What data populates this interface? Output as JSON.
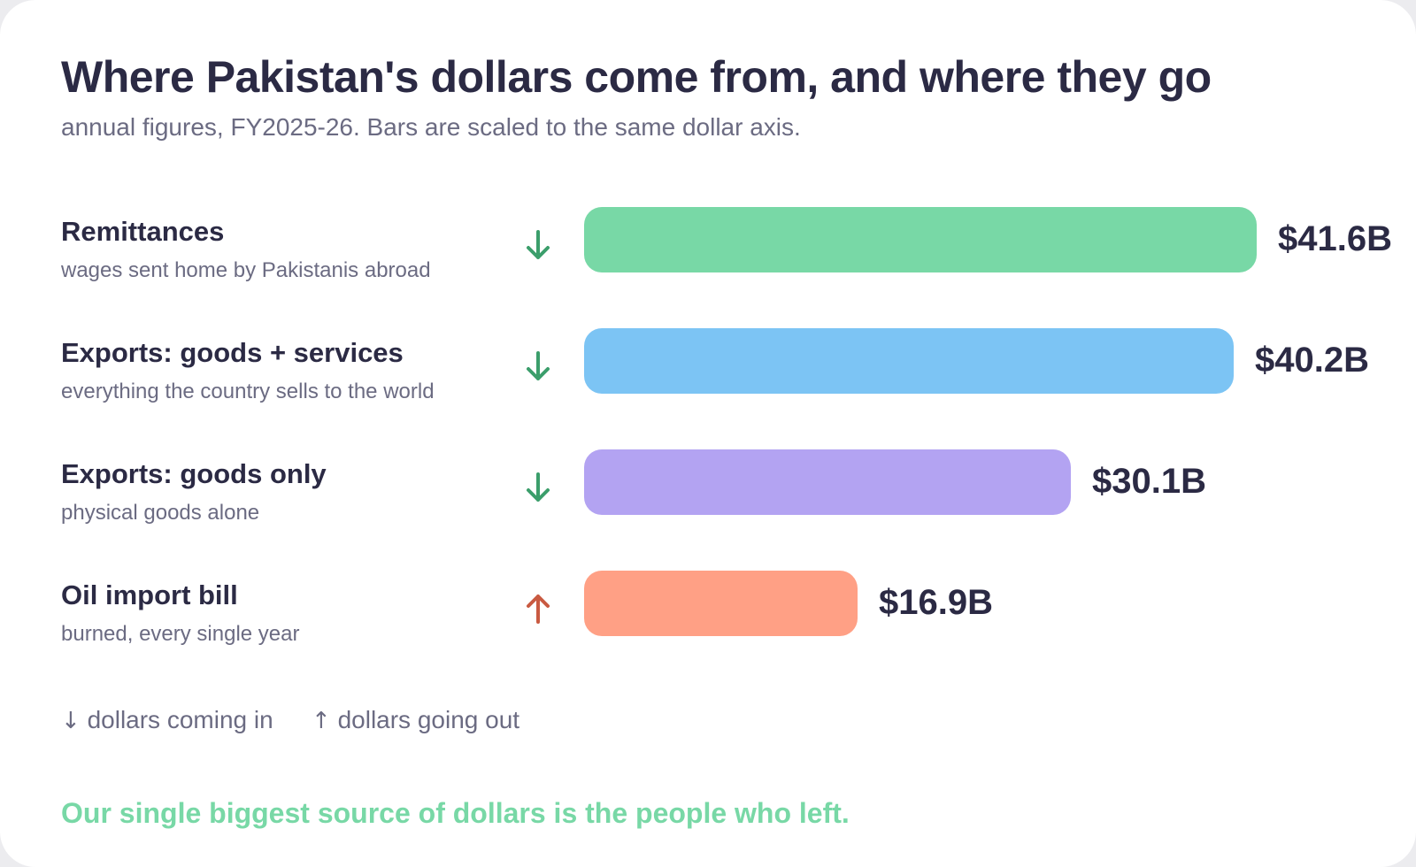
{
  "title": "Where Pakistan's dollars come from, and where they go",
  "subtitle": "annual figures, FY2025-26. Bars are scaled to the same dollar axis.",
  "legend": {
    "in": {
      "glyph": "↓",
      "label": "dollars coming in"
    },
    "out": {
      "glyph": "↑",
      "label": "dollars going out"
    }
  },
  "takeaway": "Our single biggest source of dollars is the people who left.",
  "colors": {
    "in_arrow": "#3b9e6b",
    "out_arrow": "#c95a41",
    "title": "#2b2a44",
    "muted": "#6b6b82",
    "takeaway": "#78d8a6"
  },
  "chart_data": {
    "type": "bar",
    "orientation": "horizontal",
    "unit": "USD billions",
    "xlim": [
      0,
      41.6
    ],
    "grid": false,
    "categories": [
      "Remittances",
      "Exports: goods + services",
      "Exports: goods only",
      "Oil import bill"
    ],
    "descriptions": [
      "wages sent home by Pakistanis abroad",
      "everything the country sells to the world",
      "physical goods alone",
      "burned, every single year"
    ],
    "values": [
      41.6,
      40.2,
      30.1,
      16.9
    ],
    "value_labels": [
      "$41.6B",
      "$40.2B",
      "$30.1B",
      "$16.9B"
    ],
    "directions": [
      "in",
      "in",
      "in",
      "out"
    ],
    "bar_colors": [
      "#78d8a6",
      "#7cc4f4",
      "#b3a3f2",
      "#ffa085"
    ]
  }
}
